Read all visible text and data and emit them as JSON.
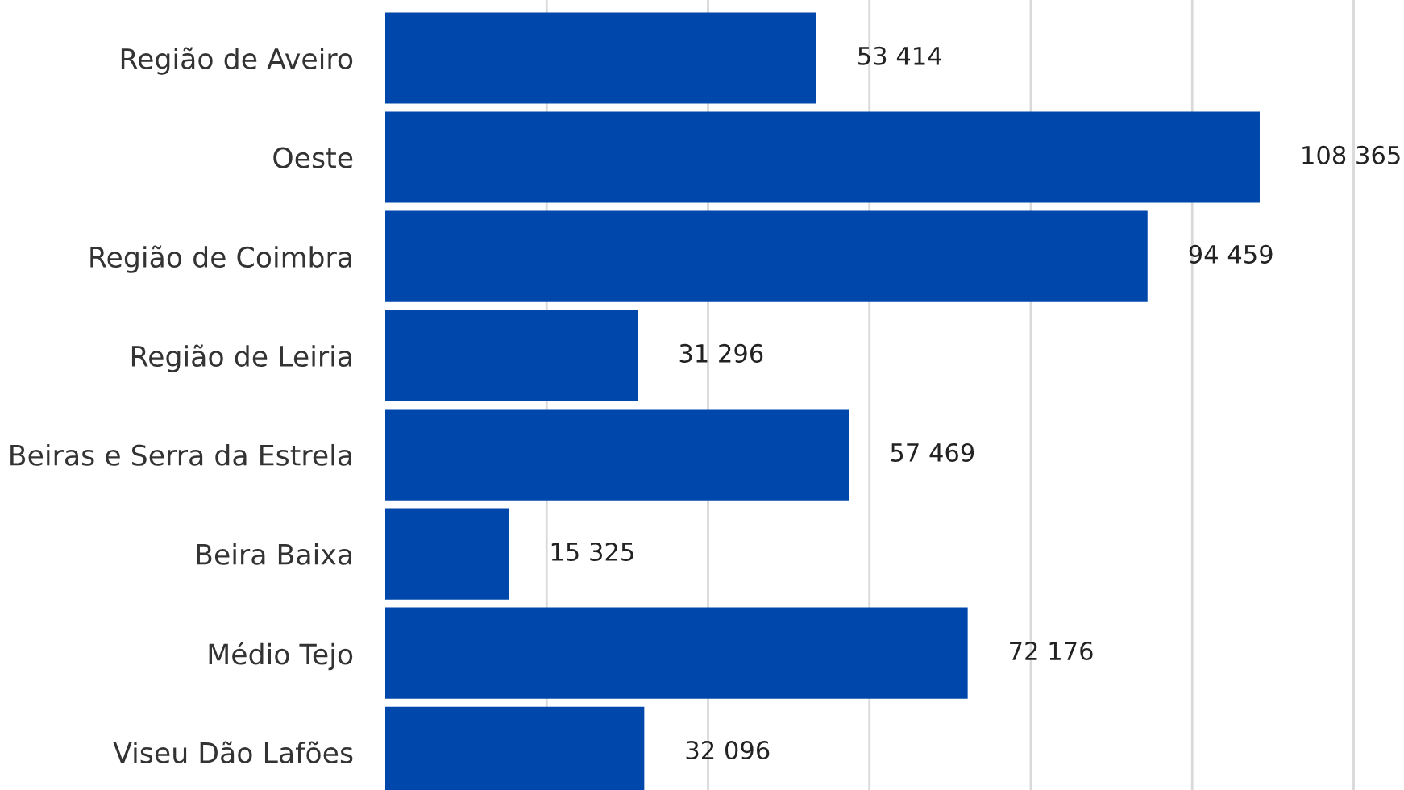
{
  "chart_data": {
    "type": "bar",
    "orientation": "horizontal",
    "categories": [
      "Região de Aveiro",
      "Oeste",
      "Região de Coimbra",
      "Região de Leiria",
      "Beiras e Serra da Estrela",
      "Beira Baixa",
      "Médio Tejo",
      "Viseu Dão Lafões"
    ],
    "values": [
      53414,
      108365,
      94459,
      31296,
      57469,
      15325,
      72176,
      32096
    ],
    "value_labels": [
      "53 414",
      "108 365",
      "94 459",
      "31 296",
      "57 469",
      "15 325",
      "72 176",
      "32 096"
    ],
    "color": "#0047ab",
    "xticks": [
      {
        "value": 20000,
        "label": null
      },
      {
        "value": 40000,
        "label": null
      },
      {
        "value": 60000,
        "label": null
      },
      {
        "value": 80000,
        "label": null
      },
      {
        "value": 100000,
        "label": null
      },
      {
        "value": 120000,
        "label": null
      }
    ],
    "grid": "x",
    "tick_labels": "y"
  }
}
